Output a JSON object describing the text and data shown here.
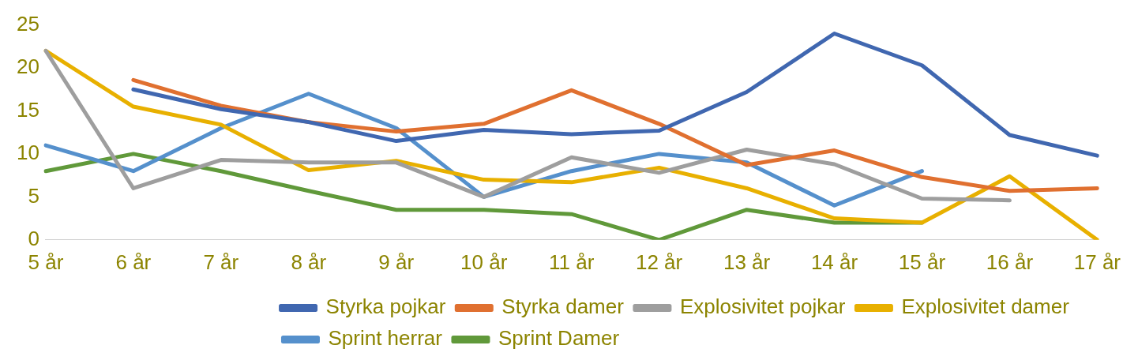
{
  "chart_data": {
    "type": "line",
    "categories": [
      "5 år",
      "6 år",
      "7 år",
      "8 år",
      "9 år",
      "10 år",
      "11 år",
      "12 år",
      "13 år",
      "14 år",
      "15 år",
      "16 år",
      "17 år"
    ],
    "ylim": [
      0,
      25
    ],
    "yticks": [
      0,
      5,
      10,
      15,
      20,
      25
    ],
    "grid": false,
    "legend": "bottom",
    "marker": "none",
    "line_style": "solid",
    "series": [
      {
        "name": "Styrka pojkar",
        "color": "#4067b0",
        "values": [
          null,
          17.5,
          15.2,
          13.7,
          11.5,
          12.8,
          12.3,
          12.7,
          17.2,
          24,
          20.3,
          12.2,
          9.8
        ]
      },
      {
        "name": "Styrka damer",
        "color": "#e07030",
        "values": [
          null,
          18.6,
          15.6,
          13.7,
          12.6,
          13.5,
          17.4,
          13.5,
          8.7,
          10.4,
          7.3,
          5.7,
          6
        ]
      },
      {
        "name": "Explosivitet pojkar",
        "color": "#9e9e9e",
        "values": [
          22,
          6,
          9.3,
          9,
          9,
          5,
          9.6,
          7.8,
          10.5,
          8.8,
          4.8,
          4.6,
          null
        ]
      },
      {
        "name": "Explosivitet damer",
        "color": "#e8b000",
        "values": [
          22,
          15.5,
          13.4,
          8.1,
          9.2,
          7,
          6.7,
          8.4,
          6,
          2.5,
          2,
          7.4,
          0
        ]
      },
      {
        "name": "Sprint herrar",
        "color": "#5590cc",
        "values": [
          11,
          8,
          13,
          17,
          13,
          5,
          8,
          10,
          9,
          4,
          8,
          null,
          null
        ]
      },
      {
        "name": "Sprint Damer",
        "color": "#60993a",
        "values": [
          8,
          10,
          8,
          5.7,
          3.5,
          3.5,
          3,
          0,
          3.5,
          2,
          2,
          null,
          null
        ]
      }
    ]
  }
}
